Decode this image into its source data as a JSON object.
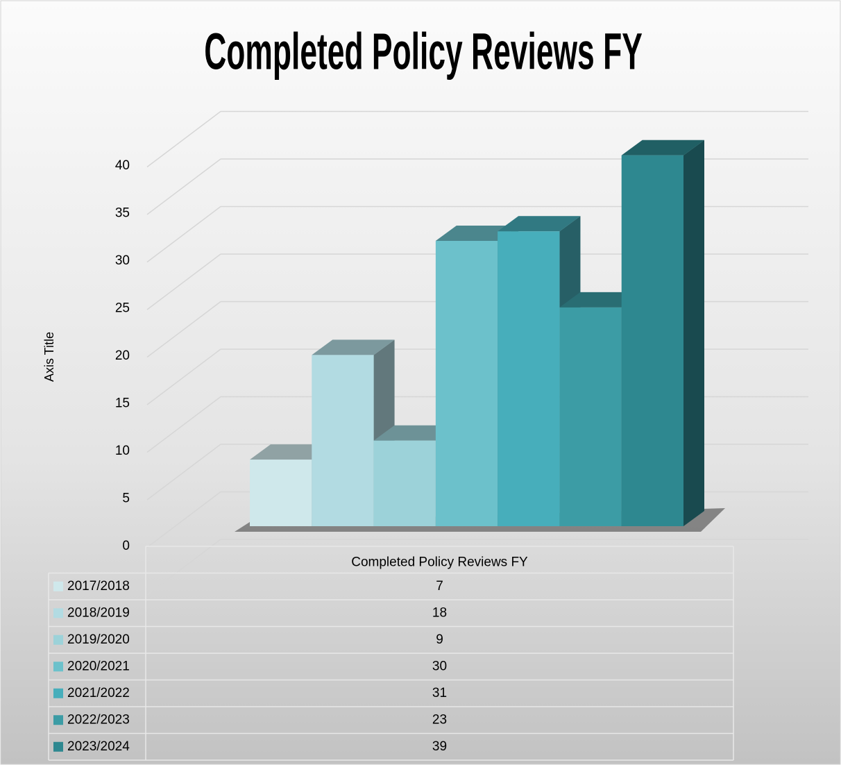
{
  "chart_data": {
    "type": "bar3d",
    "title": "Completed Policy Reviews FY",
    "y_axis_title": "Axis Title",
    "categories": [
      "Completed Policy Reviews FY"
    ],
    "series": [
      {
        "name": "2017/2018",
        "color": "#cfe8eb",
        "values": [
          7
        ]
      },
      {
        "name": "2018/2019",
        "color": "#b2dbe2",
        "values": [
          18
        ]
      },
      {
        "name": "2019/2020",
        "color": "#9cd2d9",
        "values": [
          9
        ]
      },
      {
        "name": "2020/2021",
        "color": "#6cc1cb",
        "values": [
          30
        ]
      },
      {
        "name": "2021/2022",
        "color": "#47aebb",
        "values": [
          31
        ]
      },
      {
        "name": "2022/2023",
        "color": "#3c9ca5",
        "values": [
          23
        ]
      },
      {
        "name": "2023/2024",
        "color": "#2e8890",
        "values": [
          39
        ]
      }
    ],
    "ylim": [
      0,
      45
    ],
    "yticks": [
      0,
      5,
      10,
      15,
      20,
      25,
      30,
      35,
      40
    ],
    "grid": true,
    "data_table": true
  }
}
